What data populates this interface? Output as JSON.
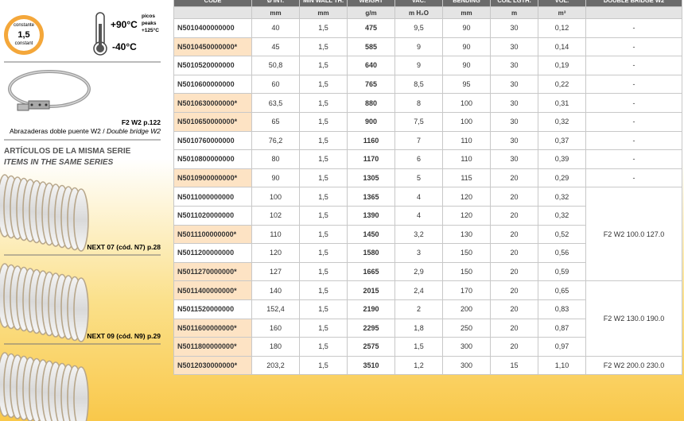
{
  "sidebar": {
    "badge": {
      "top": "constante",
      "value": "1,5",
      "bottom": "constant"
    },
    "temperature": {
      "max": "+90°C",
      "peak_es": "picos",
      "peak_en": "peaks",
      "peak": "+125°C",
      "min": "-40°C"
    },
    "clamp": {
      "ref": "F2 W2 p.122",
      "caption_es": "Abrazaderas doble puente W2 / ",
      "caption_en": "Double bridge W2"
    },
    "series_heading": {
      "es": "ARTÍCULOS DE LA MISMA SERIE",
      "en": "ITEMS IN THE SAME SERIES"
    },
    "items": [
      "NEXT 07 (cód. N7) p.28",
      "NEXT 09 (cód. N9) p.29"
    ]
  },
  "table": {
    "headers": [
      "CODE",
      "Ø INT.",
      "MIN WALL TH.",
      "WEIGHT",
      "VAC.",
      "BENDING",
      "COIL LGTH.",
      "VOL.",
      "DOUBLE BRIDGE W2"
    ],
    "units": [
      null,
      "mm",
      "mm",
      "g/m",
      "m H₂O",
      "mm",
      "m",
      "m³",
      null
    ],
    "rows": [
      [
        "N5010400000000",
        "40",
        "1,5",
        "475",
        "9,5",
        "90",
        "30",
        "0,12",
        "-"
      ],
      [
        "N5010450000000*",
        "45",
        "1,5",
        "585",
        "9",
        "90",
        "30",
        "0,14",
        "-"
      ],
      [
        "N5010520000000",
        "50,8",
        "1,5",
        "640",
        "9",
        "90",
        "30",
        "0,19",
        "-"
      ],
      [
        "N5010600000000",
        "60",
        "1,5",
        "765",
        "8,5",
        "95",
        "30",
        "0,22",
        "-"
      ],
      [
        "N5010630000000*",
        "63,5",
        "1,5",
        "880",
        "8",
        "100",
        "30",
        "0,31",
        "-"
      ],
      [
        "N5010650000000*",
        "65",
        "1,5",
        "900",
        "7,5",
        "100",
        "30",
        "0,32",
        "-"
      ],
      [
        "N5010760000000",
        "76,2",
        "1,5",
        "1160",
        "7",
        "110",
        "30",
        "0,37",
        "-"
      ],
      [
        "N5010800000000",
        "80",
        "1,5",
        "1170",
        "6",
        "110",
        "30",
        "0,39",
        "-"
      ],
      [
        "N5010900000000*",
        "90",
        "1,5",
        "1305",
        "5",
        "115",
        "20",
        "0,29",
        "-"
      ],
      [
        "N5011000000000",
        "100",
        "1,5",
        "1365",
        "4",
        "120",
        "20",
        "0,32",
        "F2 W2 100.0 127.0"
      ],
      [
        "N5011020000000",
        "102",
        "1,5",
        "1390",
        "4",
        "120",
        "20",
        "0,32",
        null
      ],
      [
        "N5011100000000*",
        "110",
        "1,5",
        "1450",
        "3,2",
        "130",
        "20",
        "0,52",
        null
      ],
      [
        "N5011200000000",
        "120",
        "1,5",
        "1580",
        "3",
        "150",
        "20",
        "0,56",
        null
      ],
      [
        "N5011270000000*",
        "127",
        "1,5",
        "1665",
        "2,9",
        "150",
        "20",
        "0,59",
        null
      ],
      [
        "N5011400000000*",
        "140",
        "1,5",
        "2015",
        "2,4",
        "170",
        "20",
        "0,65",
        "F2 W2 130.0 190.0"
      ],
      [
        "N5011520000000",
        "152,4",
        "1,5",
        "2190",
        "2",
        "200",
        "20",
        "0,83",
        null
      ],
      [
        "N5011600000000*",
        "160",
        "1,5",
        "2295",
        "1,8",
        "250",
        "20",
        "0,87",
        null
      ],
      [
        "N5011800000000*",
        "180",
        "1,5",
        "2575",
        "1,5",
        "300",
        "20",
        "0,97",
        null
      ],
      [
        "N5012030000000*",
        "203,2",
        "1,5",
        "3510",
        "1,2",
        "300",
        "15",
        "1,10",
        "F2 W2 200.0 230.0"
      ]
    ]
  }
}
